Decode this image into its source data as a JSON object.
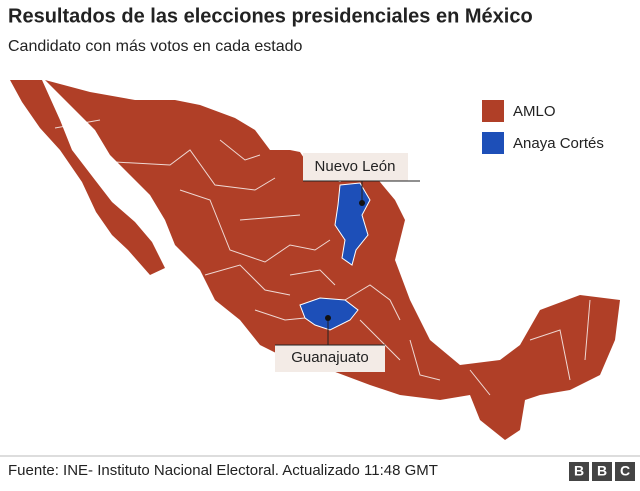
{
  "title": "Resultados de las elecciones presidenciales en México",
  "subtitle": "Candidato con más votos en cada estado",
  "legend": [
    {
      "label": "AMLO",
      "color": "#b03f27"
    },
    {
      "label": "Anaya Cortés",
      "color": "#1d4fb8"
    }
  ],
  "annotations": [
    {
      "label": "Nuevo León"
    },
    {
      "label": "Guanajuato"
    }
  ],
  "source": "Fuente: INE- Instituto Nacional Electoral. Actualizado 11:48 GMT",
  "logo": [
    "B",
    "B",
    "C"
  ]
}
